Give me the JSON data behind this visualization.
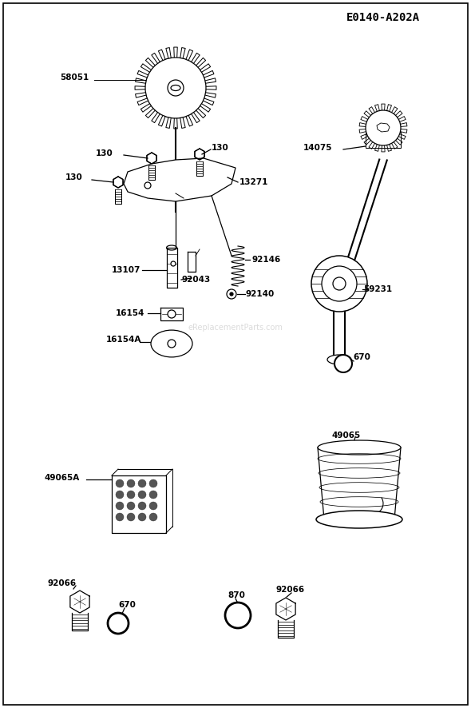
{
  "title": "E0140-A202A",
  "bg_color": "#ffffff",
  "line_color": "#000000",
  "watermark": "eReplacementParts.com",
  "label_fontsize": 7.5,
  "border": true
}
